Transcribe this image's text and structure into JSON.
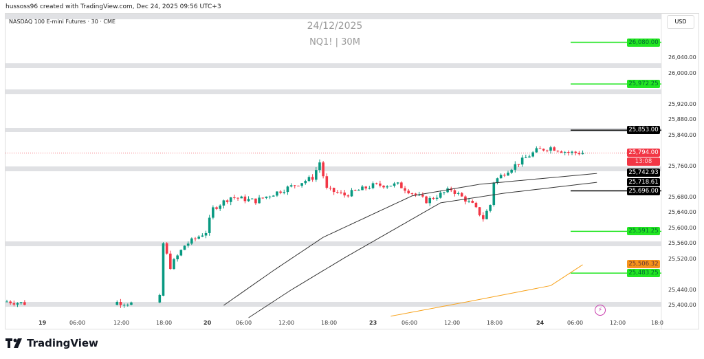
{
  "header": {
    "credit": "hussoss96 created with TradingView.com, Dec 24, 2025 09:56 UTC+3",
    "symbol": "NASDAQ 100 E-mini Futures · 30 · CME",
    "watermark_date": "24/12/2025",
    "watermark_ticker": "NQ1! | 30M",
    "currency": "USD"
  },
  "price_axis": [
    "26,040.00",
    "26,000.00",
    "25,920.00",
    "25,880.00",
    "25,840.00",
    "25,760.00",
    "25,680.00",
    "25,640.00",
    "25,600.00",
    "25,560.00",
    "25,520.00",
    "25,440.00",
    "25,400.00"
  ],
  "price_axis_values": [
    26040,
    26000,
    25920,
    25880,
    25840,
    25760,
    25680,
    25640,
    25600,
    25560,
    25520,
    25440,
    25400
  ],
  "time_axis": [
    "19",
    "06:00",
    "12:00",
    "18:00",
    "20",
    "06:00",
    "12:00",
    "18:00",
    "23",
    "06:00",
    "12:00",
    "18:00",
    "24",
    "06:00",
    "12:00",
    "18:0"
  ],
  "levels": [
    {
      "label": "26,080.00",
      "value": 26080,
      "color": "#22e622"
    },
    {
      "label": "25,972.25",
      "value": 25972.25,
      "color": "#22e622"
    },
    {
      "label": "25,853.00",
      "value": 25853,
      "color": "#000000"
    },
    {
      "label": "25,696.00",
      "value": 25696,
      "color": "#000000"
    },
    {
      "label": "25,591.25",
      "value": 25591.25,
      "color": "#22e622"
    },
    {
      "label": "25,483.25",
      "value": 25483.25,
      "color": "#22e622"
    }
  ],
  "indicator_labels": [
    {
      "label": "25,742.93",
      "value": 25742.93,
      "color": "#000000"
    },
    {
      "label": "25,718.61",
      "value": 25718.61,
      "color": "#000000"
    },
    {
      "label": "25,506.32",
      "value": 25506.32,
      "color": "#f7931a"
    }
  ],
  "current_price": {
    "label": "25,794.00",
    "value": 25794,
    "countdown": "13:08",
    "color": "#f23645"
  },
  "colors": {
    "up": "#089981",
    "down": "#f23645"
  },
  "price_path": [
    [
      0,
      25410
    ],
    [
      5,
      25405
    ],
    [
      31,
      25408
    ],
    [
      35,
      25405
    ],
    [
      43,
      25420
    ],
    [
      44,
      25560
    ],
    [
      46,
      25500
    ],
    [
      50,
      25555
    ],
    [
      56,
      25590
    ],
    [
      58,
      25650
    ],
    [
      63,
      25680
    ],
    [
      70,
      25670
    ],
    [
      78,
      25700
    ],
    [
      86,
      25730
    ],
    [
      88,
      25770
    ],
    [
      90,
      25700
    ],
    [
      95,
      25685
    ],
    [
      103,
      25710
    ],
    [
      110,
      25712
    ],
    [
      118,
      25670
    ],
    [
      125,
      25700
    ],
    [
      131,
      25660
    ],
    [
      134,
      25625
    ],
    [
      136,
      25660
    ],
    [
      137,
      25720
    ],
    [
      141,
      25750
    ],
    [
      149,
      25800
    ],
    [
      153,
      25808
    ],
    [
      158,
      25795
    ],
    [
      162,
      25794
    ]
  ],
  "ma_fast": [
    [
      61,
      25400
    ],
    [
      75,
      25490
    ],
    [
      89,
      25576
    ],
    [
      114,
      25683
    ],
    [
      133,
      25713
    ],
    [
      166,
      25741
    ]
  ],
  "ma_slow": [
    [
      68,
      25368
    ],
    [
      80,
      25440
    ],
    [
      95,
      25523
    ],
    [
      122,
      25665
    ],
    [
      140,
      25690
    ],
    [
      166,
      25718
    ]
  ],
  "ma_long": [
    [
      108,
      25372
    ],
    [
      130,
      25410
    ],
    [
      153,
      25451
    ],
    [
      162,
      25505
    ]
  ],
  "brand": "TradingView"
}
